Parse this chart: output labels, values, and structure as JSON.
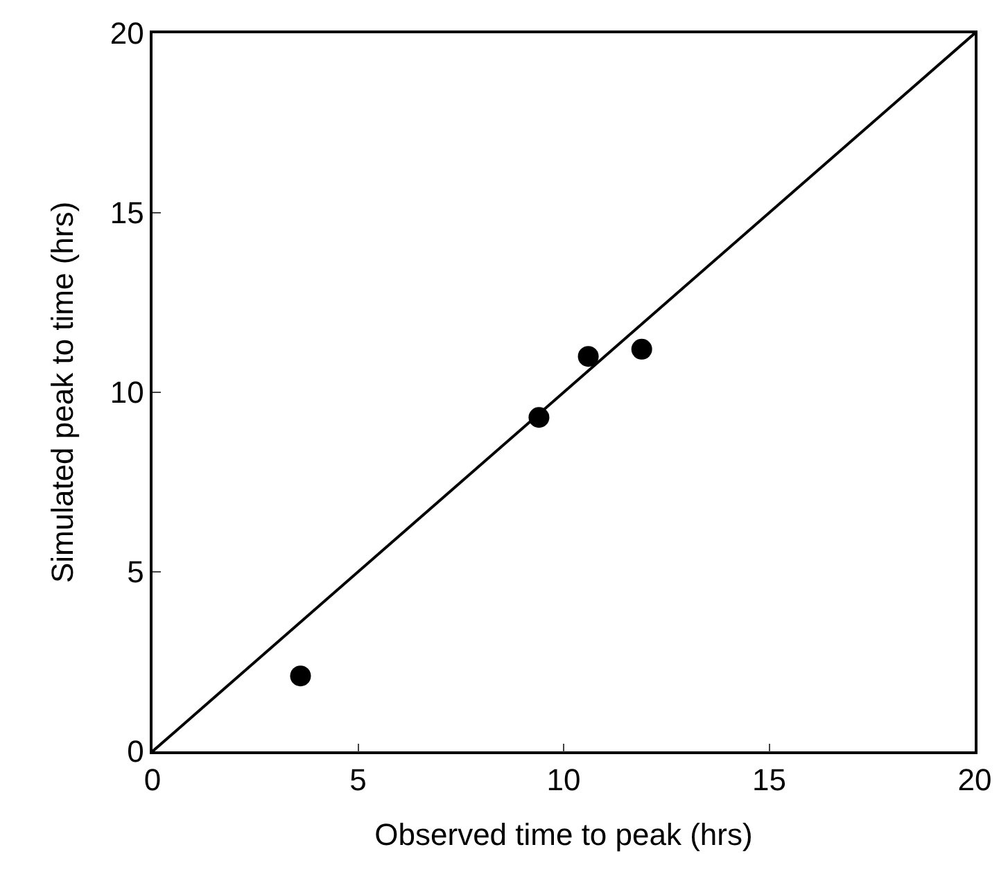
{
  "chart_data": {
    "type": "scatter",
    "xlabel": "Observed time to peak (hrs)",
    "ylabel": "Simulated peak to time (hrs)",
    "series": [
      {
        "color": "#000000",
        "x": [
          3.6,
          9.4,
          10.6,
          11.9
        ],
        "values": [
          2.1,
          9.3,
          11.0,
          11.2
        ]
      },
      {
        "type": "line",
        "color": "#000000",
        "x": [
          0,
          20
        ],
        "values": [
          0,
          20
        ],
        "line_style": "solid",
        "marker": "none"
      }
    ],
    "xlim": [
      0,
      20
    ],
    "ylim": [
      0,
      20
    ],
    "xticks": [
      0,
      5,
      10,
      15,
      20
    ],
    "yticks": [
      0,
      5,
      10,
      15,
      20
    ],
    "marker": "circle"
  }
}
